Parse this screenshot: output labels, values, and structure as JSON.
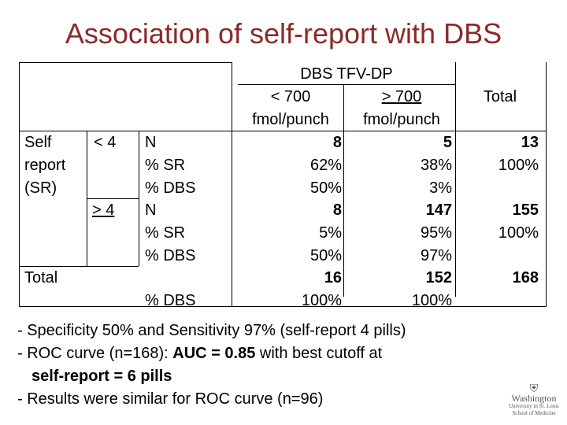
{
  "title": "Association of self-report with DBS",
  "header": {
    "group": "DBS TFV-DP",
    "col1_line1": "< 700",
    "col1_line2": "fmol/punch",
    "col2_line1": "> 700",
    "col2_line2": "fmol/punch",
    "total": "Total"
  },
  "rows": {
    "self_report": [
      "Self",
      "report",
      "(SR)"
    ],
    "lt4": "< 4",
    "ge4": "> 4",
    "total_label": "Total",
    "lt4_metrics": [
      "N",
      "% SR",
      "% DBS"
    ],
    "ge4_metrics": [
      "N",
      "% SR",
      "% DBS"
    ],
    "total_metric": "% DBS"
  },
  "values": {
    "lt4": {
      "c1": [
        "8",
        "62%",
        "50%"
      ],
      "c2": [
        "5",
        "38%",
        "3%"
      ],
      "total": [
        "13",
        "100%"
      ]
    },
    "ge4": {
      "c1": [
        "8",
        "5%",
        "50%"
      ],
      "c2": [
        "147",
        "95%",
        "97%"
      ],
      "total": [
        "155",
        "100%"
      ]
    },
    "total": {
      "c1": [
        "16",
        "100%"
      ],
      "c2": [
        "152",
        "100%"
      ],
      "total": "168"
    }
  },
  "bullets": {
    "b1": "- Specificity 50% and Sensitivity 97% (self-report 4 pills)",
    "b2_pre": "- ROC curve (n=168): ",
    "b2_bold": "AUC = 0.85",
    "b2_post": " with best cutoff at",
    "b3_bold": "self-report = 6 pills",
    "b4": "- Results were similar for ROC curve (n=96)"
  },
  "logo": {
    "line1": "Washington",
    "line2": "University in St. Louis",
    "line3": "School of Medicine"
  },
  "colors": {
    "title": "#8b2a2a"
  }
}
